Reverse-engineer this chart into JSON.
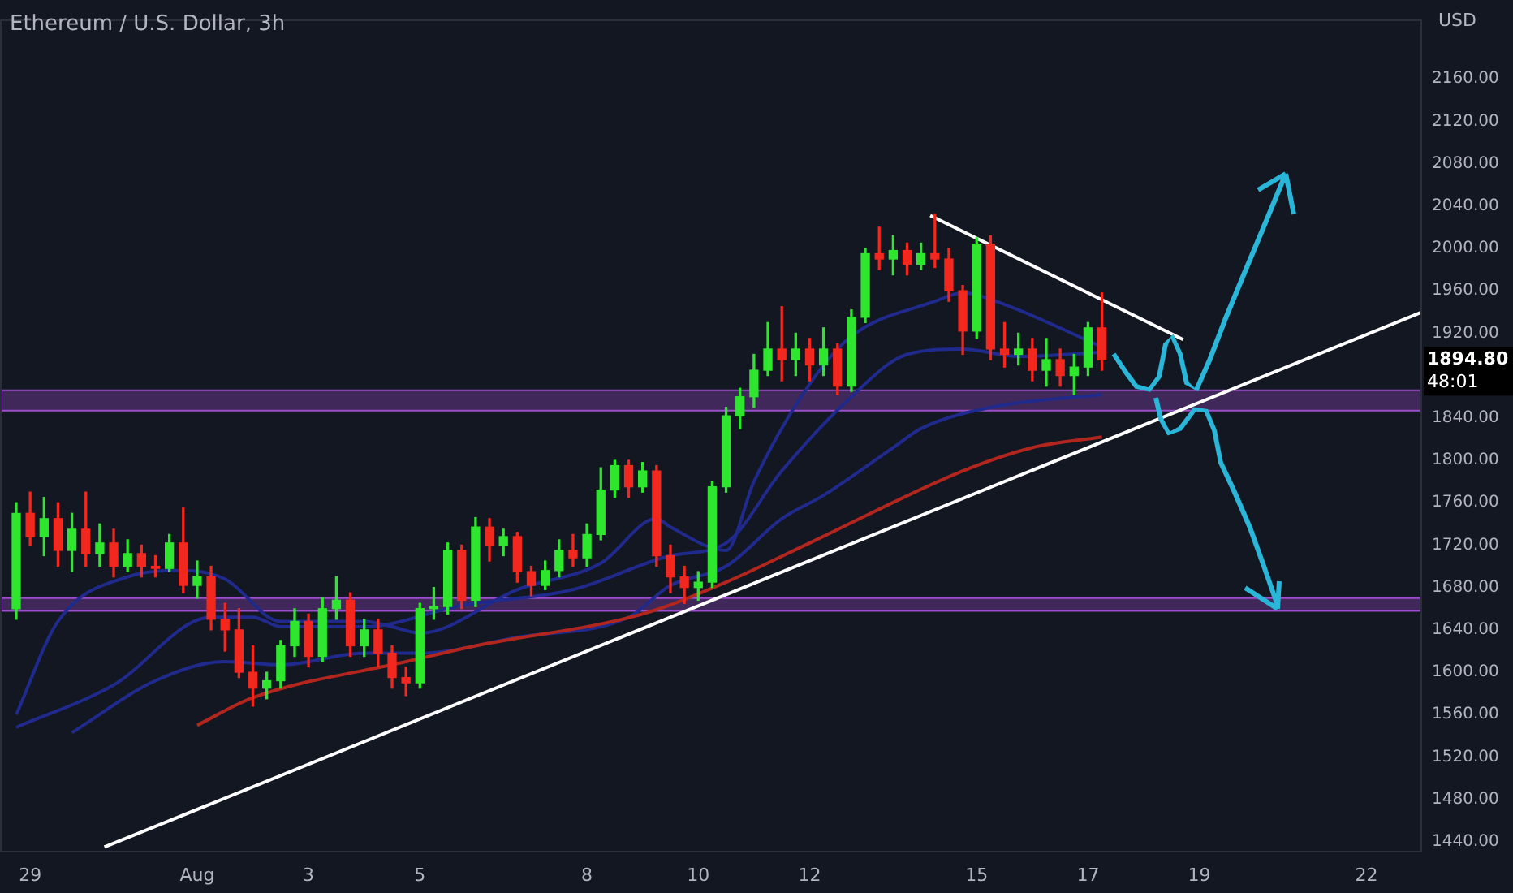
{
  "chart_data": {
    "type": "candlestick",
    "title": "Ethereum / U.S. Dollar, 3h",
    "ylabel": "USD",
    "x": [
      "--07-28T18:00",
      "--07-29T00:00",
      "--07-29T06:00",
      "--07-29T12:00",
      "--07-29T18:00",
      "--07-30T00:00",
      "--07-30T06:00",
      "--07-30T12:00",
      "--07-30T18:00",
      "--07-31T00:00",
      "--07-31T06:00",
      "--07-31T12:00",
      "--07-31T18:00",
      "--08-01T00:00",
      "--08-01T06:00",
      "--08-01T12:00",
      "--08-01T18:00",
      "--08-02T00:00",
      "--08-02T06:00",
      "--08-02T12:00",
      "--08-02T18:00",
      "--08-03T00:00",
      "--08-03T06:00",
      "--08-03T12:00",
      "--08-03T18:00",
      "--08-04T00:00",
      "--08-04T06:00",
      "--08-04T12:00",
      "--08-04T18:00",
      "--08-05T00:00",
      "--08-05T06:00",
      "--08-05T12:00",
      "--08-05T18:00",
      "--08-06T00:00",
      "--08-06T06:00",
      "--08-06T12:00",
      "--08-06T18:00",
      "--08-07T00:00",
      "--08-07T06:00",
      "--08-07T12:00",
      "--08-07T18:00",
      "--08-08T00:00",
      "--08-08T06:00",
      "--08-08T12:00",
      "--08-08T18:00",
      "--08-09T00:00",
      "--08-09T06:00",
      "--08-09T12:00",
      "--08-09T18:00",
      "--08-10T00:00",
      "--08-10T06:00",
      "--08-10T12:00",
      "--08-10T18:00",
      "--08-11T00:00",
      "--08-11T06:00",
      "--08-11T12:00",
      "--08-11T18:00",
      "--08-12T00:00",
      "--08-12T06:00",
      "--08-12T12:00",
      "--08-12T18:00",
      "--08-13T00:00",
      "--08-13T06:00",
      "--08-13T12:00",
      "--08-13T18:00",
      "--08-14T00:00",
      "--08-14T06:00",
      "--08-14T12:00",
      "--08-14T18:00",
      "--08-15T00:00",
      "--08-15T06:00",
      "--08-15T12:00",
      "--08-15T18:00",
      "--08-16T00:00",
      "--08-16T06:00",
      "--08-16T12:00",
      "--08-16T18:00",
      "--08-17T00:00",
      "--08-17T06:00"
    ],
    "ohlc": [
      [
        1660,
        1760,
        1650,
        1750
      ],
      [
        1750,
        1770,
        1720,
        1728
      ],
      [
        1728,
        1765,
        1710,
        1745
      ],
      [
        1745,
        1760,
        1700,
        1715
      ],
      [
        1715,
        1750,
        1695,
        1735
      ],
      [
        1735,
        1770,
        1700,
        1712
      ],
      [
        1712,
        1740,
        1700,
        1722
      ],
      [
        1722,
        1735,
        1690,
        1700
      ],
      [
        1700,
        1725,
        1695,
        1712
      ],
      [
        1712,
        1720,
        1690,
        1700
      ],
      [
        1700,
        1710,
        1690,
        1698
      ],
      [
        1698,
        1730,
        1695,
        1722
      ],
      [
        1722,
        1755,
        1675,
        1682
      ],
      [
        1682,
        1705,
        1670,
        1690
      ],
      [
        1690,
        1700,
        1640,
        1650
      ],
      [
        1650,
        1665,
        1620,
        1640
      ],
      [
        1640,
        1660,
        1595,
        1600
      ],
      [
        1600,
        1625,
        1568,
        1585
      ],
      [
        1585,
        1600,
        1575,
        1592
      ],
      [
        1592,
        1630,
        1585,
        1625
      ],
      [
        1625,
        1660,
        1615,
        1648
      ],
      [
        1648,
        1655,
        1605,
        1615
      ],
      [
        1615,
        1670,
        1610,
        1660
      ],
      [
        1660,
        1690,
        1650,
        1668
      ],
      [
        1668,
        1675,
        1615,
        1625
      ],
      [
        1625,
        1650,
        1615,
        1640
      ],
      [
        1640,
        1650,
        1605,
        1618
      ],
      [
        1618,
        1625,
        1585,
        1595
      ],
      [
        1595,
        1605,
        1578,
        1590
      ],
      [
        1590,
        1665,
        1585,
        1660
      ],
      [
        1660,
        1680,
        1650,
        1662
      ],
      [
        1662,
        1722,
        1655,
        1715
      ],
      [
        1715,
        1720,
        1660,
        1668
      ],
      [
        1668,
        1746,
        1662,
        1737
      ],
      [
        1737,
        1745,
        1705,
        1720
      ],
      [
        1720,
        1735,
        1710,
        1728
      ],
      [
        1728,
        1732,
        1685,
        1695
      ],
      [
        1695,
        1700,
        1672,
        1682
      ],
      [
        1682,
        1705,
        1678,
        1696
      ],
      [
        1696,
        1725,
        1690,
        1715
      ],
      [
        1715,
        1730,
        1700,
        1708
      ],
      [
        1708,
        1740,
        1700,
        1730
      ],
      [
        1730,
        1793,
        1725,
        1772
      ],
      [
        1772,
        1800,
        1765,
        1795
      ],
      [
        1795,
        1800,
        1765,
        1775
      ],
      [
        1775,
        1798,
        1770,
        1790
      ],
      [
        1790,
        1795,
        1700,
        1710
      ],
      [
        1710,
        1720,
        1675,
        1690
      ],
      [
        1690,
        1700,
        1665,
        1680
      ],
      [
        1680,
        1695,
        1668,
        1685
      ],
      [
        1685,
        1780,
        1680,
        1775
      ],
      [
        1775,
        1850,
        1770,
        1842
      ],
      [
        1842,
        1868,
        1830,
        1860
      ],
      [
        1860,
        1900,
        1850,
        1885
      ],
      [
        1885,
        1930,
        1880,
        1905
      ],
      [
        1905,
        1945,
        1875,
        1895
      ],
      [
        1895,
        1920,
        1880,
        1905
      ],
      [
        1905,
        1915,
        1875,
        1890
      ],
      [
        1890,
        1925,
        1880,
        1905
      ],
      [
        1905,
        1910,
        1862,
        1870
      ],
      [
        1870,
        1942,
        1865,
        1935
      ],
      [
        1935,
        2000,
        1930,
        1995
      ],
      [
        1995,
        2020,
        1980,
        1990
      ],
      [
        1990,
        2012,
        1975,
        1998
      ],
      [
        1998,
        2005,
        1975,
        1985
      ],
      [
        1985,
        2005,
        1980,
        1995
      ],
      [
        1995,
        2032,
        1982,
        1990
      ],
      [
        1990,
        2000,
        1950,
        1960
      ],
      [
        1960,
        1965,
        1900,
        1922
      ],
      [
        1922,
        2010,
        1915,
        2004
      ],
      [
        2004,
        2012,
        1895,
        1905
      ],
      [
        1905,
        1930,
        1888,
        1900
      ],
      [
        1900,
        1920,
        1890,
        1905
      ],
      [
        1905,
        1915,
        1875,
        1885
      ],
      [
        1885,
        1915,
        1870,
        1895
      ],
      [
        1895,
        1905,
        1870,
        1880
      ],
      [
        1880,
        1900,
        1862,
        1888
      ],
      [
        1888,
        1930,
        1880,
        1925
      ],
      [
        1925,
        1958,
        1885,
        1894.8
      ]
    ],
    "colors": [
      "#2ee62e",
      "#f2281e",
      "#2ee62e",
      "#f2281e",
      "#2ee62e",
      "#f2281e",
      "#2ee62e",
      "#f2281e",
      "#2ee62e",
      "#f2281e",
      "#f2281e",
      "#2ee62e",
      "#f2281e",
      "#2ee62e",
      "#f2281e",
      "#f2281e",
      "#f2281e",
      "#f2281e",
      "#2ee62e",
      "#2ee62e",
      "#2ee62e",
      "#f2281e",
      "#2ee62e",
      "#2ee62e",
      "#f2281e",
      "#2ee62e",
      "#f2281e",
      "#f2281e",
      "#f2281e",
      "#2ee62e",
      "#2ee62e",
      "#2ee62e",
      "#f2281e",
      "#2ee62e",
      "#f2281e",
      "#2ee62e",
      "#f2281e",
      "#f2281e",
      "#2ee62e",
      "#2ee62e",
      "#f2281e",
      "#2ee62e",
      "#2ee62e",
      "#2ee62e",
      "#f2281e",
      "#2ee62e",
      "#f2281e",
      "#f2281e",
      "#f2281e",
      "#2ee62e",
      "#2ee62e",
      "#2ee62e",
      "#2ee62e",
      "#2ee62e",
      "#2ee62e",
      "#f2281e",
      "#2ee62e",
      "#f2281e",
      "#2ee62e",
      "#f2281e",
      "#2ee62e",
      "#2ee62e",
      "#f2281e",
      "#2ee62e",
      "#f2281e",
      "#2ee62e",
      "#f2281e",
      "#f2281e",
      "#f2281e",
      "#2ee62e",
      "#f2281e",
      "#f2281e",
      "#2ee62e",
      "#f2281e",
      "#2ee62e",
      "#f2281e",
      "#2ee62e",
      "#2ee62e",
      "#f2281e"
    ],
    "series": [
      {
        "type": "line",
        "color": "#b3261e",
        "x": [
          "--08-01T00:00",
          "--08-02T00:00",
          "--08-04T18:00",
          "--08-06T00:00",
          "--08-09T00:00",
          "--08-10T12:00",
          "--08-12T00:00",
          "--08-14T18:00",
          "--08-16T00:00",
          "--08-17T06:00"
        ],
        "values": [
          1550,
          1576,
          1610,
          1625,
          1655,
          1685,
          1722,
          1790,
          1812,
          1822
        ]
      },
      {
        "type": "line",
        "color": "#1f2a8c",
        "x": [
          "--07-29T18:00",
          "--07-31T06:00",
          "--08-01T12:00",
          "--08-02T12:00",
          "--08-04T00:00",
          "--08-05T00:00",
          "--08-06T18:00",
          "--08-08T18:00",
          "--08-09T12:00",
          "--08-10T12:00",
          "--08-11T12:00",
          "--08-12T06:00",
          "--08-13T12:00",
          "--08-14T00:00",
          "--08-15T06:00",
          "--08-17T06:00"
        ],
        "values": [
          1543,
          1592,
          1610,
          1607,
          1618,
          1618,
          1633,
          1652,
          1682,
          1700,
          1745,
          1767,
          1812,
          1830,
          1850,
          1862
        ]
      },
      {
        "type": "line",
        "color": "#1f2a8c",
        "x": [
          "--07-28T18:00",
          "--07-30T12:00",
          "--08-01T06:00",
          "--08-02T00:00",
          "--08-02T12:00",
          "--08-04T00:00",
          "--08-05T18:00",
          "--08-07T18:00",
          "--08-09T12:00",
          "--08-10T12:00",
          "--08-11T12:00",
          "--08-12T18:00",
          "--08-13T18:00",
          "--08-14T18:00",
          "--08-15T18:00",
          "--08-17T06:00"
        ],
        "values": [
          1548,
          1588,
          1652,
          1652,
          1643,
          1643,
          1663,
          1678,
          1710,
          1722,
          1790,
          1860,
          1900,
          1905,
          1898,
          1902
        ]
      },
      {
        "type": "line",
        "color": "#1f2a8c",
        "x": [
          "--07-28T18:00",
          "--07-29T12:00",
          "--07-30T18:00",
          "--07-31T18:00",
          "--08-01T12:00",
          "--08-02T12:00",
          "--08-04T00:00",
          "--08-04T12:00",
          "--08-05T00:00",
          "--08-06T18:00",
          "--08-08T06:00",
          "--08-09T06:00",
          "--08-09T12:00",
          "--08-10T12:00",
          "--08-11T00:00",
          "--08-12T00:00",
          "--08-12T18:00",
          "--08-14T06:00",
          "--08-14T18:00",
          "--08-15T12:00",
          "--08-17T06:00"
        ],
        "values": [
          1560,
          1648,
          1690,
          1696,
          1688,
          1648,
          1648,
          1643,
          1637,
          1678,
          1703,
          1745,
          1737,
          1715,
          1780,
          1872,
          1917,
          1950,
          1958,
          1947,
          1907
        ]
      },
      {
        "type": "line",
        "color": "#ffffff",
        "x": [
          "--07-30T08:00",
          "--08-23T00:00"
        ],
        "values": [
          1435,
          1940
        ]
      },
      {
        "type": "line",
        "color": "#ffffff",
        "x": [
          "--08-14T04:00",
          "--08-18T17:00"
        ],
        "values": [
          2031,
          1914
        ]
      }
    ],
    "bands": [
      {
        "axis": "y",
        "from": 1847,
        "to": 1866,
        "color": "#9c4dcc"
      },
      {
        "axis": "y",
        "from": 1658,
        "to": 1670,
        "color": "#9c4dcc"
      }
    ],
    "annotations": [
      "1894.80",
      "48:01"
    ],
    "xlim": [
      "--07-28T11:00",
      "--08-23T00:00"
    ],
    "xticks": [
      {
        "value": "--07-29",
        "label": "29"
      },
      {
        "value": "--08-01",
        "label": "Aug"
      },
      {
        "value": "--08-03",
        "label": "3"
      },
      {
        "value": "--08-05",
        "label": "5"
      },
      {
        "value": "--08-08",
        "label": "8"
      },
      {
        "value": "--08-10",
        "label": "10"
      },
      {
        "value": "--08-12",
        "label": "12"
      },
      {
        "value": "--08-15",
        "label": "15"
      },
      {
        "value": "--08-17",
        "label": "17"
      },
      {
        "value": "--08-19",
        "label": "19"
      },
      {
        "value": "--08-22",
        "label": "22"
      }
    ],
    "ylim": [
      1430,
      2216
    ],
    "yticks": [
      {
        "value": 1440,
        "label": "1440.00"
      },
      {
        "value": 1480,
        "label": "1480.00"
      },
      {
        "value": 1520,
        "label": "1520.00"
      },
      {
        "value": 1560,
        "label": "1560.00"
      },
      {
        "value": 1600,
        "label": "1600.00"
      },
      {
        "value": 1640,
        "label": "1640.00"
      },
      {
        "value": 1680,
        "label": "1680.00"
      },
      {
        "value": 1720,
        "label": "1720.00"
      },
      {
        "value": 1760,
        "label": "1760.00"
      },
      {
        "value": 1800,
        "label": "1800.00"
      },
      {
        "value": 1840,
        "label": "1840.00"
      },
      {
        "value": 1920,
        "label": "1920.00"
      },
      {
        "value": 1960,
        "label": "1960.00"
      },
      {
        "value": 2000,
        "label": "2000.00"
      },
      {
        "value": 2040,
        "label": "2040.00"
      },
      {
        "value": 2080,
        "label": "2080.00"
      },
      {
        "value": 2120,
        "label": "2120.00"
      },
      {
        "value": 2160,
        "label": "2160.00"
      }
    ]
  }
}
